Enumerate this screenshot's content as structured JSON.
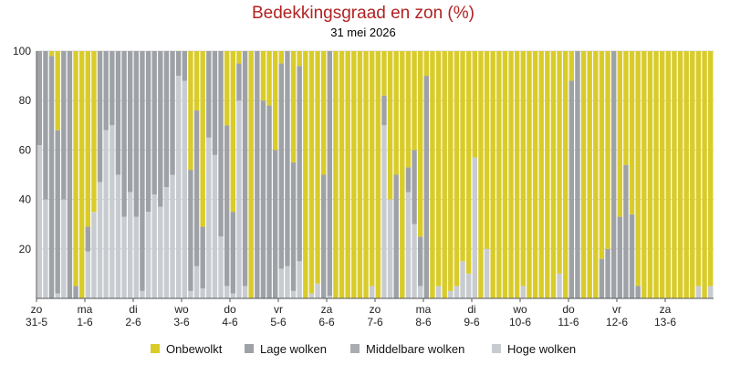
{
  "chart_data": {
    "type": "bar",
    "stacked": true,
    "title": "Bedekkingsgraad en zon (%)",
    "subtitle": "31 mei 2026",
    "ylim": [
      0,
      100
    ],
    "yticks": [
      20,
      40,
      60,
      80,
      100
    ],
    "grid": true,
    "legend_position": "bottom",
    "x_ticks": [
      {
        "day": "zo",
        "date": "31-5",
        "index": 0
      },
      {
        "day": "ma",
        "date": "1-6",
        "index": 8
      },
      {
        "day": "di",
        "date": "2-6",
        "index": 16
      },
      {
        "day": "wo",
        "date": "3-6",
        "index": 24
      },
      {
        "day": "do",
        "date": "4-6",
        "index": 32
      },
      {
        "day": "vr",
        "date": "5-6",
        "index": 40
      },
      {
        "day": "za",
        "date": "6-6",
        "index": 48
      },
      {
        "day": "zo",
        "date": "7-6",
        "index": 56
      },
      {
        "day": "ma",
        "date": "8-6",
        "index": 64
      },
      {
        "day": "di",
        "date": "9-6",
        "index": 72
      },
      {
        "day": "wo",
        "date": "10-6",
        "index": 80
      },
      {
        "day": "do",
        "date": "11-6",
        "index": 88
      },
      {
        "day": "vr",
        "date": "12-6",
        "index": 96
      },
      {
        "day": "za",
        "date": "13-6",
        "index": 104
      }
    ],
    "colors": {
      "Onbewolkt": "#d9cc2a",
      "Lage wolken": "#9ea2a6",
      "Middelbare wolken": "#a9adb1",
      "Hoge wolken": "#c8ccd0"
    },
    "series": [
      {
        "name": "Hoge wolken",
        "values": [
          62,
          40,
          0,
          2,
          40,
          0,
          0,
          0,
          19,
          35,
          47,
          68,
          70,
          50,
          33,
          43,
          33,
          3,
          35,
          42,
          37,
          45,
          50,
          90,
          88,
          3,
          13,
          4,
          65,
          58,
          25,
          5,
          2,
          80,
          5,
          0,
          0,
          0,
          0,
          0,
          12,
          13,
          3,
          15,
          0,
          2,
          6,
          0,
          1,
          0,
          0,
          0,
          0,
          0,
          0,
          5,
          0,
          70,
          40,
          0,
          0,
          43,
          30,
          5,
          0,
          0,
          5,
          0,
          3,
          5,
          15,
          10,
          57,
          0,
          20,
          0,
          0,
          0,
          0,
          0,
          5,
          0,
          0,
          0,
          0,
          0,
          10,
          0,
          0,
          0,
          0,
          0,
          0,
          0,
          0,
          0,
          0,
          0,
          0,
          0,
          0,
          0,
          0,
          0,
          0,
          0,
          0,
          0,
          0,
          5,
          0,
          5
        ]
      },
      {
        "name": "Middelbare wolken",
        "values": [
          0,
          0,
          0,
          0,
          0,
          0,
          0,
          0,
          0,
          0,
          0,
          0,
          0,
          0,
          0,
          0,
          0,
          0,
          0,
          0,
          0,
          0,
          0,
          0,
          0,
          0,
          0,
          0,
          0,
          0,
          0,
          0,
          0,
          0,
          0,
          0,
          0,
          0,
          0,
          0,
          0,
          0,
          0,
          0,
          0,
          0,
          0,
          0,
          0,
          0,
          0,
          0,
          0,
          0,
          0,
          0,
          0,
          0,
          0,
          0,
          0,
          0,
          0,
          0,
          0,
          0,
          0,
          0,
          0,
          0,
          0,
          0,
          0,
          0,
          0,
          0,
          0,
          0,
          0,
          0,
          0,
          0,
          0,
          0,
          0,
          0,
          0,
          0,
          0,
          0,
          0,
          0,
          0,
          0,
          0,
          0,
          0,
          0,
          0,
          0,
          0,
          0,
          0,
          0,
          0,
          0,
          0,
          0,
          0,
          0,
          0,
          0
        ]
      },
      {
        "name": "Lage wolken",
        "values": [
          38,
          60,
          98,
          66,
          60,
          100,
          5,
          0,
          10,
          0,
          53,
          32,
          30,
          50,
          67,
          57,
          67,
          97,
          65,
          58,
          63,
          55,
          50,
          10,
          12,
          49,
          63,
          25,
          35,
          42,
          75,
          65,
          33,
          15,
          95,
          0,
          100,
          80,
          78,
          60,
          83,
          87,
          52,
          79,
          0,
          0,
          0,
          50,
          99,
          0,
          0,
          0,
          0,
          0,
          0,
          0,
          0,
          12,
          0,
          50,
          0,
          10,
          30,
          20,
          90,
          0,
          0,
          0,
          0,
          0,
          0,
          0,
          0,
          0,
          0,
          0,
          0,
          0,
          0,
          0,
          0,
          0,
          0,
          0,
          0,
          0,
          0,
          0,
          88,
          100,
          0,
          0,
          0,
          16,
          20,
          100,
          33,
          54,
          34,
          5,
          0,
          0,
          0,
          0,
          0,
          0,
          0,
          0,
          0,
          0,
          0,
          0
        ]
      },
      {
        "name": "Onbewolkt",
        "values": [
          0,
          0,
          2,
          32,
          0,
          0,
          95,
          100,
          71,
          65,
          0,
          0,
          0,
          0,
          0,
          0,
          0,
          0,
          0,
          0,
          0,
          0,
          0,
          0,
          0,
          48,
          24,
          71,
          0,
          0,
          0,
          30,
          65,
          5,
          0,
          100,
          0,
          20,
          22,
          40,
          5,
          0,
          45,
          6,
          100,
          98,
          94,
          50,
          0,
          100,
          100,
          100,
          100,
          100,
          100,
          95,
          100,
          18,
          60,
          50,
          100,
          47,
          40,
          75,
          10,
          100,
          95,
          100,
          97,
          95,
          85,
          90,
          43,
          100,
          80,
          100,
          100,
          100,
          100,
          100,
          95,
          100,
          100,
          100,
          100,
          100,
          90,
          100,
          12,
          0,
          100,
          100,
          100,
          84,
          80,
          0,
          67,
          46,
          66,
          95,
          100,
          100,
          100,
          100,
          100,
          100,
          100,
          100,
          100,
          95,
          100,
          95
        ]
      }
    ]
  },
  "legend": [
    {
      "label": "Onbewolkt",
      "swatch_color": "#d9cc2a"
    },
    {
      "label": "Lage wolken",
      "swatch_color": "#9ea2a6"
    },
    {
      "label": "Middelbare wolken",
      "swatch_color": "#a9adb1"
    },
    {
      "label": "Hoge wolken",
      "swatch_color": "#c8ccd0"
    }
  ]
}
